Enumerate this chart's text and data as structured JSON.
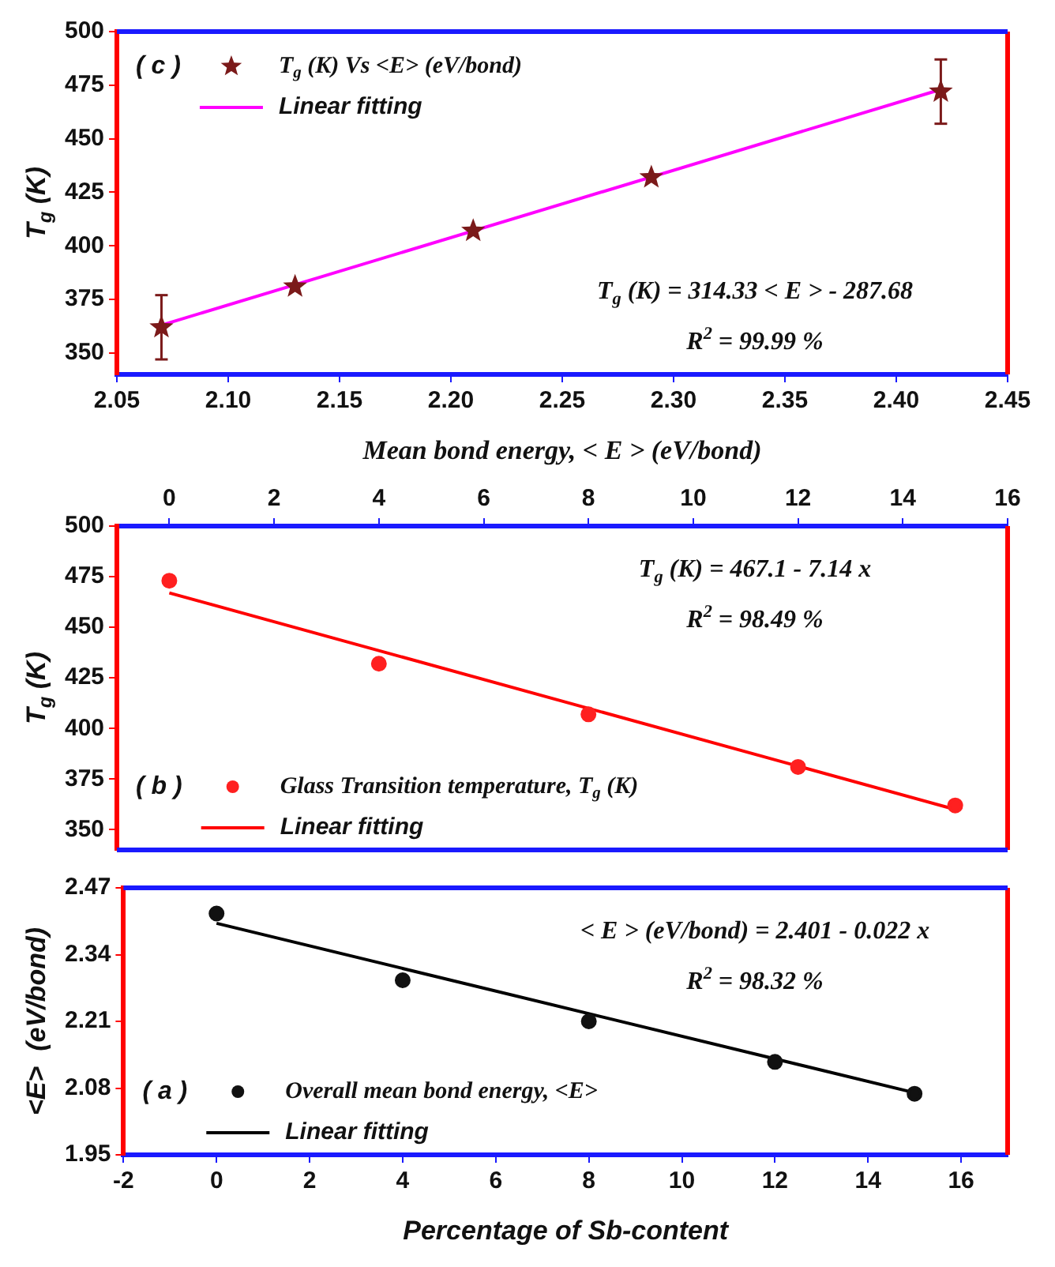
{
  "chart_data": [
    {
      "type": "scatter",
      "xlabel": "Mean bond energy, < E > (eV/bond)",
      "ylabel": "T$_{g}$ (K)",
      "xlim": [
        2.05,
        2.45
      ],
      "xticks": [
        2.05,
        {
          "value": 2.1,
          "label": "2.10"
        },
        2.15,
        {
          "value": 2.2,
          "label": "2.20"
        },
        2.25,
        {
          "value": 2.3,
          "label": "2.30"
        },
        2.35,
        {
          "value": 2.4,
          "label": "2.40"
        },
        2.45
      ],
      "ylim": [
        340,
        500
      ],
      "yticks": [
        350,
        375,
        400,
        425,
        450,
        475,
        500
      ],
      "grid": false,
      "legend": "top left",
      "annotations": [
        "( c )",
        "T$_{g}$ (K) = 314.33 < E > - 287.68",
        "R$^{2}$ = 99.99 %"
      ],
      "series": [
        {
          "name": "T$_{g}$ (K) Vs <E> (eV/bond)",
          "type": "scatter",
          "color": "#7b1a1a",
          "marker": "star",
          "x": [
            2.07,
            2.13,
            2.21,
            2.29,
            2.42
          ],
          "values": [
            362,
            381,
            407,
            432,
            472
          ],
          "errors": [
            15,
            null,
            null,
            null,
            15
          ]
        },
        {
          "name": "Linear fitting",
          "type": "line",
          "color": "#ff00ff",
          "marker": "none",
          "line_style": "solid",
          "x": [
            2.07,
            2.42
          ],
          "values": [
            363,
            473
          ]
        }
      ]
    },
    {
      "type": "scatter",
      "ylabel": "T$_{g}$ (K)",
      "xlim": [
        -1,
        16
      ],
      "xticks": [
        0,
        2,
        4,
        6,
        8,
        10,
        12,
        14,
        16
      ],
      "ylim": [
        340,
        500
      ],
      "yticks": [
        350,
        375,
        400,
        425,
        450,
        475,
        500
      ],
      "grid": false,
      "legend": "bottom left",
      "annotations": [
        "( b )",
        "T$_{g}$ (K) = 467.1 - 7.14 x",
        "R$^{2}$ = 98.49 %"
      ],
      "series": [
        {
          "name": "Glass Transition temperature, T$_{g}$ (K)",
          "type": "scatter",
          "color": "#ff2020",
          "marker": "circle",
          "x": [
            0,
            4,
            8,
            12,
            15
          ],
          "values": [
            473,
            432,
            407,
            381,
            362
          ]
        },
        {
          "name": "Linear fitting",
          "type": "line",
          "color": "#ff0000",
          "marker": "none",
          "line_style": "solid",
          "x": [
            0,
            15
          ],
          "values": [
            467,
            360
          ]
        }
      ]
    },
    {
      "type": "scatter",
      "xlabel": "Percentage of Sb-content",
      "ylabel": "<E>  (eV/bond)",
      "xlim": [
        -2,
        17
      ],
      "xticks": [
        -2,
        0,
        2,
        4,
        6,
        8,
        10,
        12,
        14,
        16
      ],
      "ylim": [
        1.95,
        2.47
      ],
      "yticks": [
        1.95,
        2.08,
        2.21,
        2.34,
        2.47
      ],
      "grid": false,
      "legend": "bottom left",
      "annotations": [
        "( a )",
        "< E > (eV/bond) = 2.401 - 0.022 x",
        "R$^{2}$ = 98.32 %"
      ],
      "series": [
        {
          "name": "Overall mean bond energy, <E>",
          "type": "scatter",
          "color": "#111111",
          "marker": "circle",
          "x": [
            0,
            4,
            8,
            12,
            15
          ],
          "values": [
            2.42,
            2.29,
            2.21,
            2.131,
            2.069
          ]
        },
        {
          "name": "Linear fitting",
          "type": "line",
          "color": "#000000",
          "marker": "none",
          "line_style": "solid",
          "x": [
            0,
            15
          ],
          "values": [
            2.401,
            2.071
          ]
        }
      ]
    }
  ]
}
